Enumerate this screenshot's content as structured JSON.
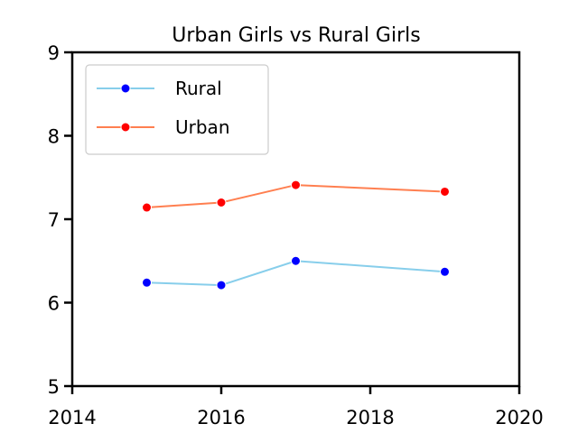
{
  "chart_data": {
    "type": "line",
    "title": "Urban Girls vs Rural Girls",
    "xlabel": "",
    "ylabel": "",
    "xlim": [
      2014,
      2020
    ],
    "ylim": [
      5,
      9
    ],
    "xticks": [
      2014,
      2016,
      2018,
      2020
    ],
    "yticks": [
      5,
      6,
      7,
      8,
      9
    ],
    "grid": false,
    "legend_position": "top-left",
    "x": [
      2015,
      2016,
      2017,
      2019
    ],
    "series": [
      {
        "name": "Rural",
        "values": [
          6.24,
          6.21,
          6.5,
          6.37
        ],
        "line_color": "#87ceeb",
        "marker_color": "#0000ff"
      },
      {
        "name": "Urban",
        "values": [
          7.14,
          7.2,
          7.41,
          7.33
        ],
        "line_color": "#ff7f50",
        "marker_color": "#ff0000"
      }
    ]
  }
}
